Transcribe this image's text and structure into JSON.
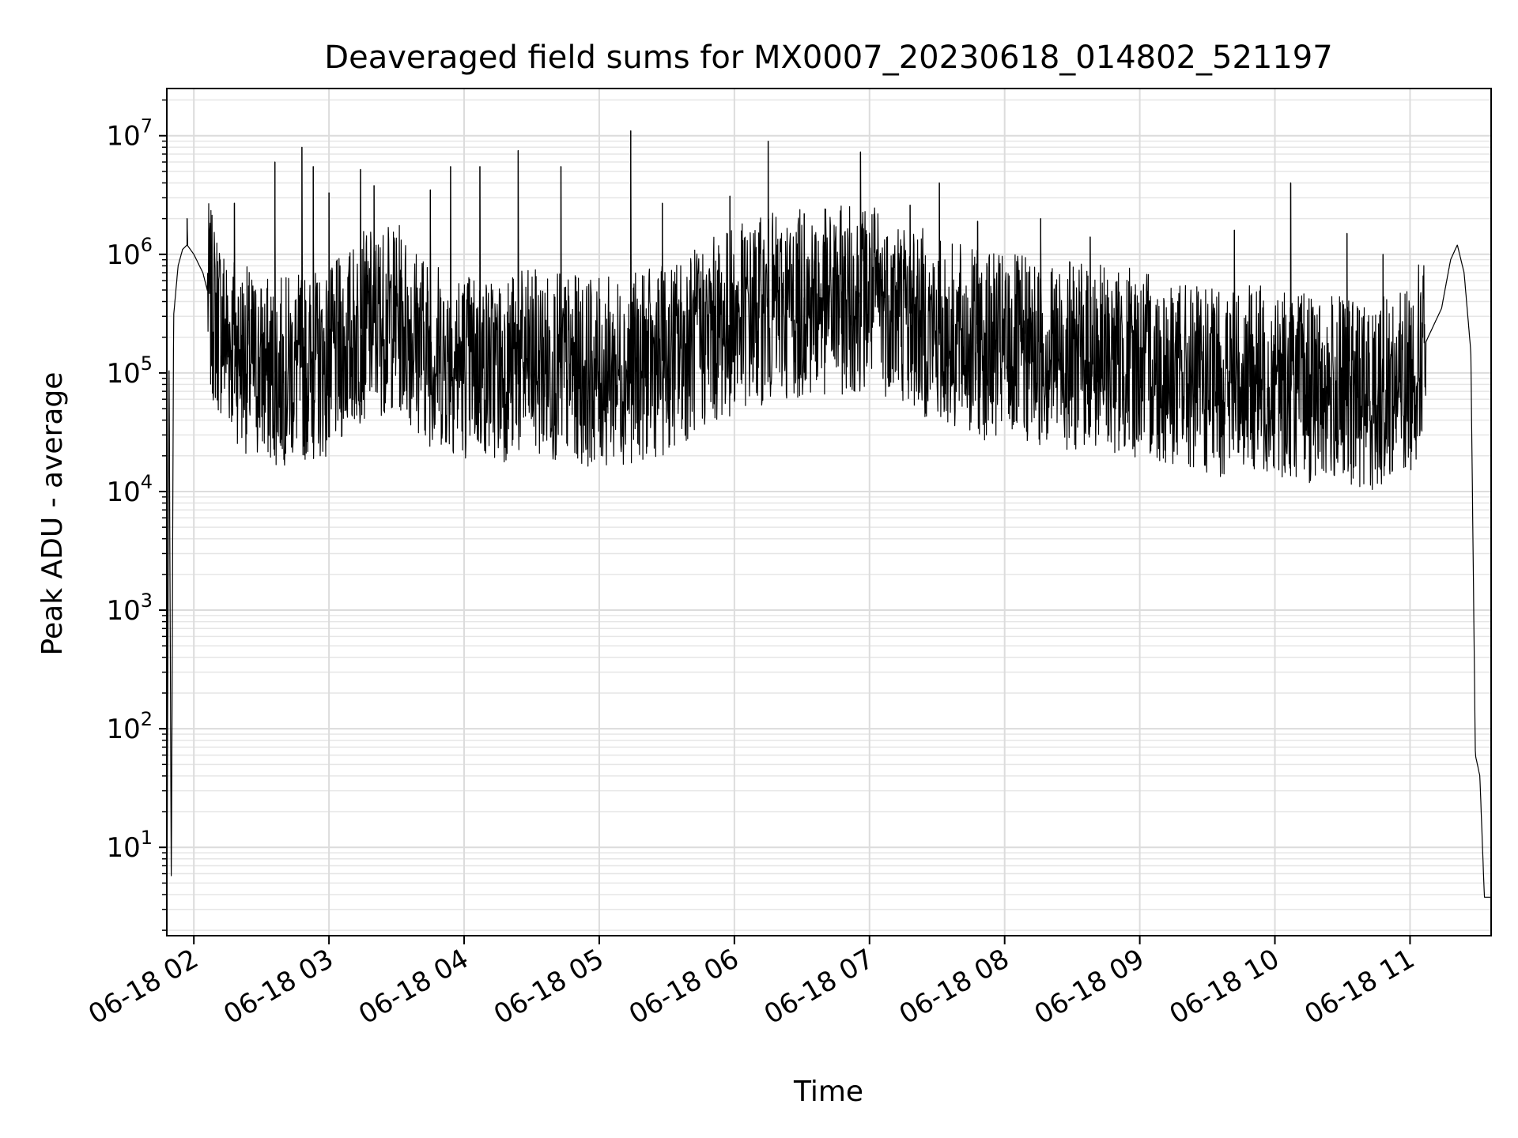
{
  "chart_data": {
    "type": "line",
    "title": "Deaveraged field sums for MX0007_20230618_014802_521197",
    "xlabel": "Time",
    "ylabel": "Peak ADU - average",
    "yscale": "log",
    "xlim": [
      "2023-06-18 01:48",
      "2023-06-18 11:36"
    ],
    "ylim": [
      1.8,
      25000000
    ],
    "grid": "on (major and minor)",
    "x_ticks": [
      "06-18 02",
      "06-18 03",
      "06-18 04",
      "06-18 05",
      "06-18 06",
      "06-18 07",
      "06-18 08",
      "06-18 09",
      "06-18 10",
      "06-18 11"
    ],
    "y_ticks": [
      {
        "base": "10",
        "exp": "1"
      },
      {
        "base": "10",
        "exp": "2"
      },
      {
        "base": "10",
        "exp": "3"
      },
      {
        "base": "10",
        "exp": "4"
      },
      {
        "base": "10",
        "exp": "5"
      },
      {
        "base": "10",
        "exp": "6"
      },
      {
        "base": "10",
        "exp": "7"
      }
    ],
    "line_color": "#000000",
    "series": [
      {
        "x": [
          "2023-06-18 01:48",
          "2023-06-18 01:49",
          "2023-06-18 01:50",
          "2023-06-18 01:51",
          "2023-06-18 01:53",
          "2023-06-18 01:55",
          "2023-06-18 01:57",
          "2023-06-18 02:00",
          "2023-06-18 02:04",
          "2023-06-18 02:08",
          "2023-06-18 02:15",
          "2023-06-18 02:25",
          "2023-06-18 02:35",
          "2023-06-18 02:45",
          "2023-06-18 03:00",
          "2023-06-18 03:15",
          "2023-06-18 03:30",
          "2023-06-18 03:45",
          "2023-06-18 04:00",
          "2023-06-18 04:15",
          "2023-06-18 04:30",
          "2023-06-18 04:45",
          "2023-06-18 05:00",
          "2023-06-18 05:15",
          "2023-06-18 05:30",
          "2023-06-18 05:45",
          "2023-06-18 06:00",
          "2023-06-18 06:15",
          "2023-06-18 06:30",
          "2023-06-18 06:45",
          "2023-06-18 07:00",
          "2023-06-18 07:15",
          "2023-06-18 07:30",
          "2023-06-18 07:45",
          "2023-06-18 08:00",
          "2023-06-18 08:15",
          "2023-06-18 08:30",
          "2023-06-18 08:45",
          "2023-06-18 09:00",
          "2023-06-18 09:15",
          "2023-06-18 09:30",
          "2023-06-18 09:45",
          "2023-06-18 10:00",
          "2023-06-18 10:15",
          "2023-06-18 10:30",
          "2023-06-18 10:45",
          "2023-06-18 11:00",
          "2023-06-18 11:08",
          "2023-06-18 11:14",
          "2023-06-18 11:18",
          "2023-06-18 11:21",
          "2023-06-18 11:24",
          "2023-06-18 11:27",
          "2023-06-18 11:29",
          "2023-06-18 11:31",
          "2023-06-18 11:33",
          "2023-06-18 11:36"
        ],
        "values": [
          2,
          130000,
          3.8,
          300000,
          800000,
          1100000,
          1200000,
          1000000,
          700000,
          350000,
          200000,
          120000,
          100000,
          110000,
          120000,
          250000,
          300000,
          150000,
          120000,
          110000,
          120000,
          110000,
          100000,
          110000,
          130000,
          200000,
          280000,
          350000,
          380000,
          400000,
          450000,
          350000,
          220000,
          180000,
          160000,
          150000,
          140000,
          130000,
          120000,
          100000,
          80000,
          90000,
          85000,
          75000,
          70000,
          65000,
          90000,
          200000,
          350000,
          900000,
          1200000,
          700000,
          150000,
          60,
          40,
          3.8,
          3.8
        ],
        "spikes": [
          {
            "x": "2023-06-18 01:57",
            "y": 2000000
          },
          {
            "x": "2023-06-18 02:18",
            "y": 2700000
          },
          {
            "x": "2023-06-18 02:36",
            "y": 6000000
          },
          {
            "x": "2023-06-18 02:48",
            "y": 8000000
          },
          {
            "x": "2023-06-18 02:53",
            "y": 5500000
          },
          {
            "x": "2023-06-18 03:00",
            "y": 3300000
          },
          {
            "x": "2023-06-18 03:14",
            "y": 5200000
          },
          {
            "x": "2023-06-18 03:20",
            "y": 3800000
          },
          {
            "x": "2023-06-18 03:45",
            "y": 3500000
          },
          {
            "x": "2023-06-18 03:54",
            "y": 5500000
          },
          {
            "x": "2023-06-18 04:07",
            "y": 5500000
          },
          {
            "x": "2023-06-18 04:24",
            "y": 7500000
          },
          {
            "x": "2023-06-18 04:43",
            "y": 5500000
          },
          {
            "x": "2023-06-18 05:14",
            "y": 11000000
          },
          {
            "x": "2023-06-18 05:28",
            "y": 2700000
          },
          {
            "x": "2023-06-18 05:58",
            "y": 3100000
          },
          {
            "x": "2023-06-18 06:15",
            "y": 9000000
          },
          {
            "x": "2023-06-18 06:31",
            "y": 2200000
          },
          {
            "x": "2023-06-18 06:56",
            "y": 7300000
          },
          {
            "x": "2023-06-18 07:18",
            "y": 2600000
          },
          {
            "x": "2023-06-18 07:31",
            "y": 4000000
          },
          {
            "x": "2023-06-18 07:48",
            "y": 1900000
          },
          {
            "x": "2023-06-18 08:16",
            "y": 2000000
          },
          {
            "x": "2023-06-18 08:38",
            "y": 1400000
          },
          {
            "x": "2023-06-18 09:42",
            "y": 1600000
          },
          {
            "x": "2023-06-18 10:07",
            "y": 4000000
          },
          {
            "x": "2023-06-18 10:32",
            "y": 1500000
          },
          {
            "x": "2023-06-18 10:48",
            "y": 1000000
          }
        ]
      }
    ]
  }
}
